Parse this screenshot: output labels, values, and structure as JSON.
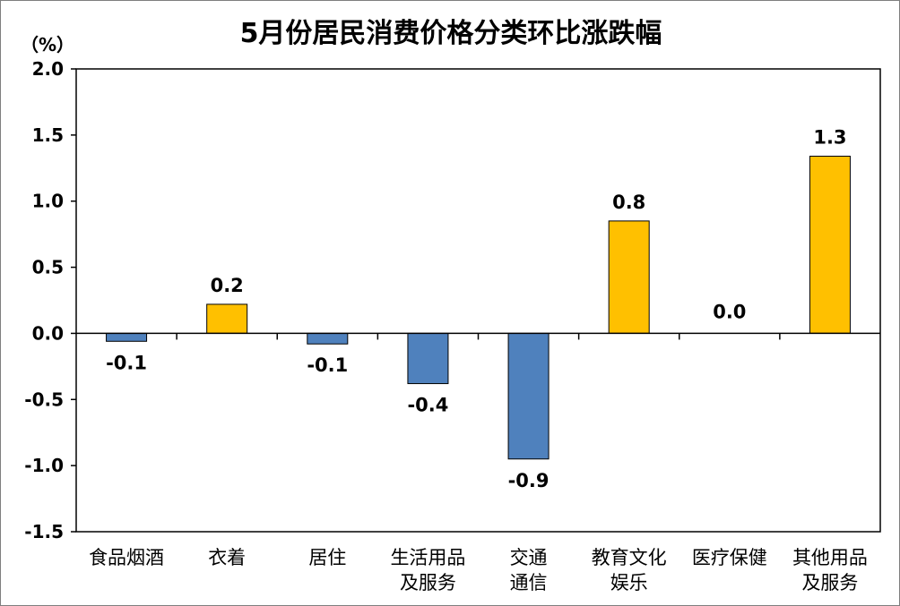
{
  "chart_data": {
    "type": "bar",
    "title": "5月份居民消费价格分类环比涨跌幅",
    "unit_label": "（%）",
    "categories": [
      [
        "食品烟酒"
      ],
      [
        "衣着"
      ],
      [
        "居住"
      ],
      [
        "生活用品",
        "及服务"
      ],
      [
        "交通",
        "通信"
      ],
      [
        "教育文化",
        "娱乐"
      ],
      [
        "医疗保健"
      ],
      [
        "其他用品",
        "及服务"
      ]
    ],
    "values": [
      -0.06,
      0.22,
      -0.08,
      -0.38,
      -0.95,
      0.85,
      0.0,
      1.34
    ],
    "data_labels": [
      "-0.1",
      "0.2",
      "-0.1",
      "-0.4",
      "-0.9",
      "0.8",
      "0.0",
      "1.3"
    ],
    "ylim": [
      -1.5,
      2.0
    ],
    "yticks": [
      "2.0",
      "1.5",
      "1.0",
      "0.5",
      "0.0",
      "-0.5",
      "-1.0",
      "-1.5"
    ],
    "ytick_values": [
      2.0,
      1.5,
      1.0,
      0.5,
      0.0,
      -0.5,
      -1.0,
      -1.5
    ],
    "colors": {
      "positive": "#FFC000",
      "negative": "#4F81BD",
      "bar_stroke": "#000000"
    },
    "grid": false
  }
}
